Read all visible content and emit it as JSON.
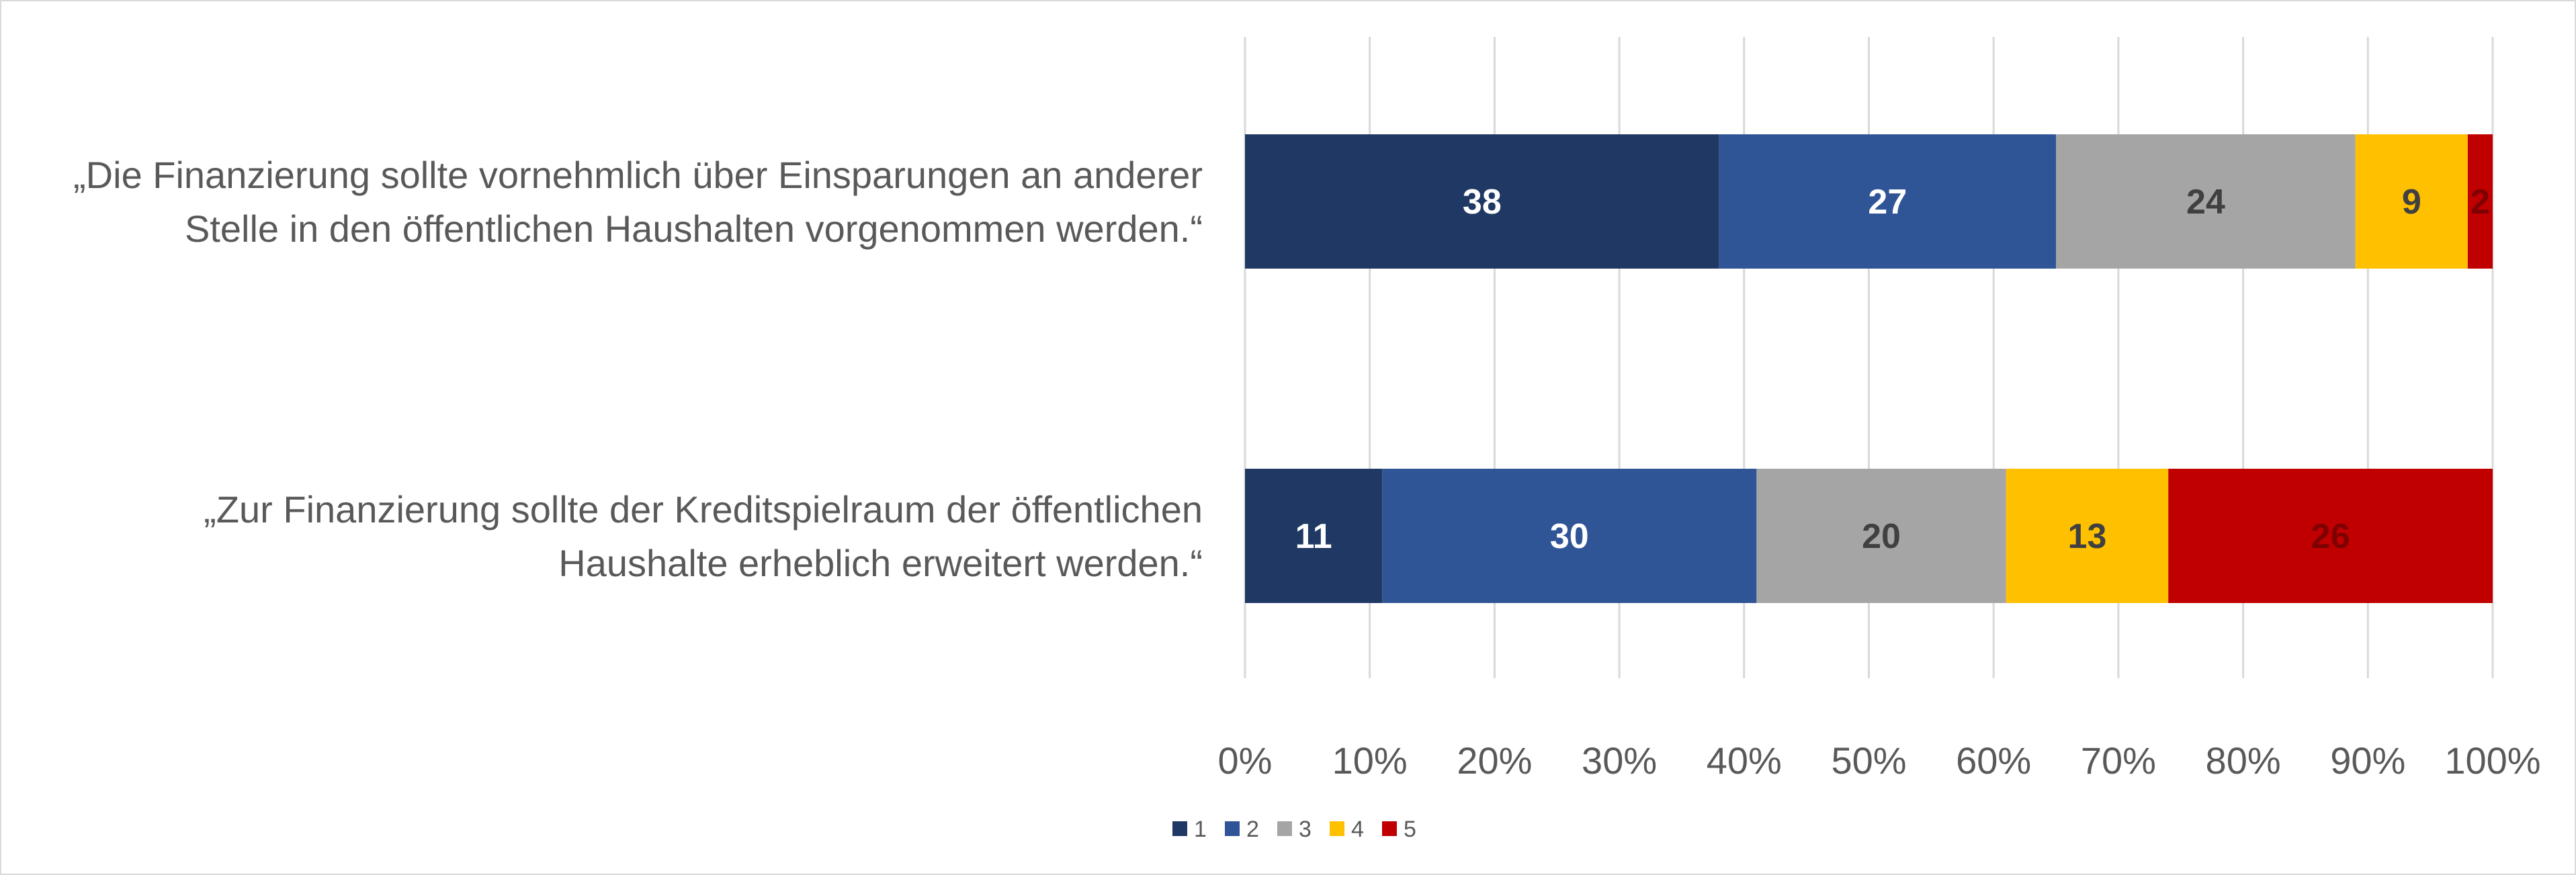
{
  "chart_data": {
    "type": "bar",
    "orientation": "horizontal",
    "stacked": "percent",
    "categories": [
      [
        "„Die Finanzierung sollte vornehmlich über Einsparungen an anderer",
        "Stelle in den öffentlichen Haushalten vorgenommen werden.“"
      ],
      [
        "„Zur Finanzierung sollte der Kreditspielraum der öffentlichen",
        "Haushalte erheblich erweitert werden.“"
      ]
    ],
    "series": [
      {
        "name": "1",
        "color": "#203864",
        "label_color": "#ffffff",
        "values": [
          38,
          11
        ]
      },
      {
        "name": "2",
        "color": "#2f5597",
        "label_color": "#ffffff",
        "values": [
          27,
          30
        ]
      },
      {
        "name": "3",
        "color": "#a5a5a5",
        "label_color": "#404040",
        "values": [
          24,
          20
        ]
      },
      {
        "name": "4",
        "color": "#ffc000",
        "label_color": "#404040",
        "values": [
          9,
          13
        ]
      },
      {
        "name": "5",
        "color": "#c00000",
        "label_color": "#7f0000",
        "values": [
          2,
          26
        ]
      }
    ],
    "x_ticks": [
      "0%",
      "10%",
      "20%",
      "30%",
      "40%",
      "50%",
      "60%",
      "70%",
      "80%",
      "90%",
      "100%"
    ],
    "xlim": [
      0,
      100
    ],
    "grid": "vertical",
    "legend": "bottom"
  }
}
